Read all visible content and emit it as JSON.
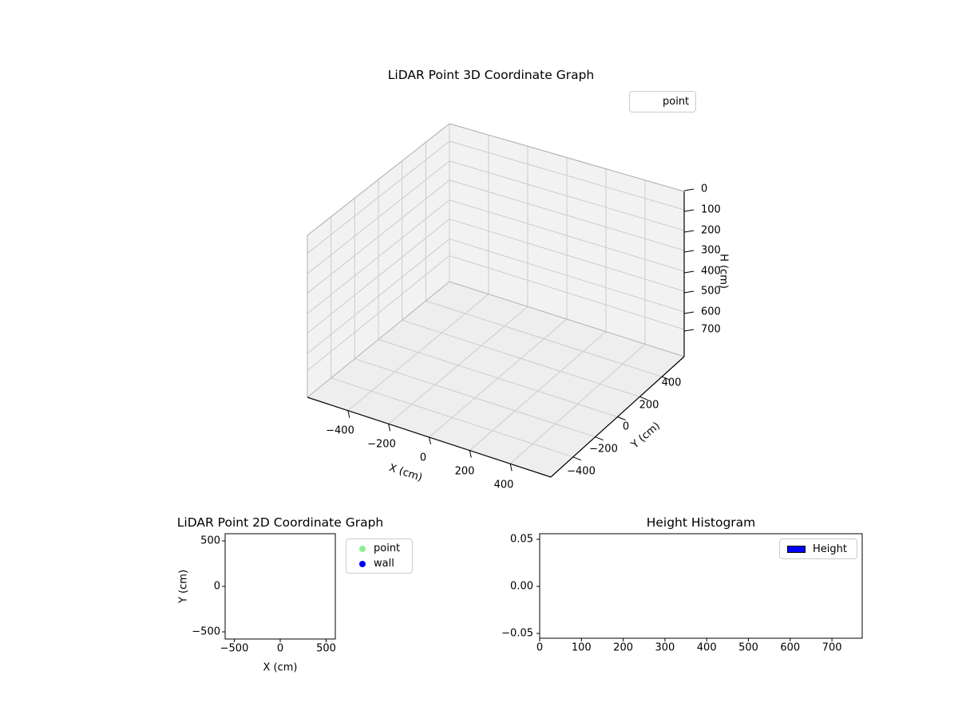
{
  "figure": {
    "background": "#ffffff",
    "text_color": "#000000"
  },
  "chart_data": [
    {
      "id": "lidar_3d",
      "type": "scatter3d",
      "title": "LiDAR Point 3D Coordinate Graph",
      "xlabel": "X (cm)",
      "ylabel": "Y (cm)",
      "zlabel": "H (cm)",
      "xlim": [
        -600,
        600
      ],
      "ylim": [
        -600,
        600
      ],
      "zlim": [
        0,
        700
      ],
      "z_axis_inverted": true,
      "grid": true,
      "x_ticks": [
        "−400",
        "−200",
        "0",
        "200",
        "400"
      ],
      "y_ticks": [
        "400",
        "200",
        "0",
        "−200",
        "−400"
      ],
      "z_ticks": [
        "0",
        "100",
        "200",
        "300",
        "400",
        "500",
        "600",
        "700"
      ],
      "legend": {
        "position": "upper-right",
        "entries": [
          {
            "label": "point",
            "marker": "none"
          }
        ]
      },
      "series": [
        {
          "name": "point",
          "points": []
        }
      ]
    },
    {
      "id": "lidar_2d",
      "type": "scatter",
      "title": "LiDAR Point 2D Coordinate Graph",
      "xlabel": "X (cm)",
      "ylabel": "Y (cm)",
      "xlim": [
        -600,
        600
      ],
      "ylim": [
        -600,
        600
      ],
      "grid": false,
      "x_ticks": [
        "−500",
        "0",
        "500"
      ],
      "y_ticks": [
        "500",
        "0",
        "−500"
      ],
      "legend": {
        "position": "outside-right",
        "entries": [
          {
            "label": "point",
            "color": "#90ee90",
            "marker": "circle"
          },
          {
            "label": "wall",
            "color": "#0000ff",
            "marker": "circle"
          }
        ]
      },
      "series": [
        {
          "name": "point",
          "color": "#90ee90",
          "points": []
        },
        {
          "name": "wall",
          "color": "#0000ff",
          "points": []
        }
      ]
    },
    {
      "id": "height_histogram",
      "type": "bar",
      "title": "Height Histogram",
      "xlabel": "",
      "ylabel": "",
      "xlim": [
        0,
        772
      ],
      "ylim": [
        -0.05,
        0.05
      ],
      "grid": false,
      "x_ticks": [
        "0",
        "100",
        "200",
        "300",
        "400",
        "500",
        "600",
        "700"
      ],
      "y_ticks": [
        "0.05",
        "0.00",
        "−0.05"
      ],
      "legend": {
        "position": "upper-right",
        "entries": [
          {
            "label": "Height",
            "color": "#0000ff",
            "marker": "rect"
          }
        ]
      },
      "values": []
    }
  ]
}
